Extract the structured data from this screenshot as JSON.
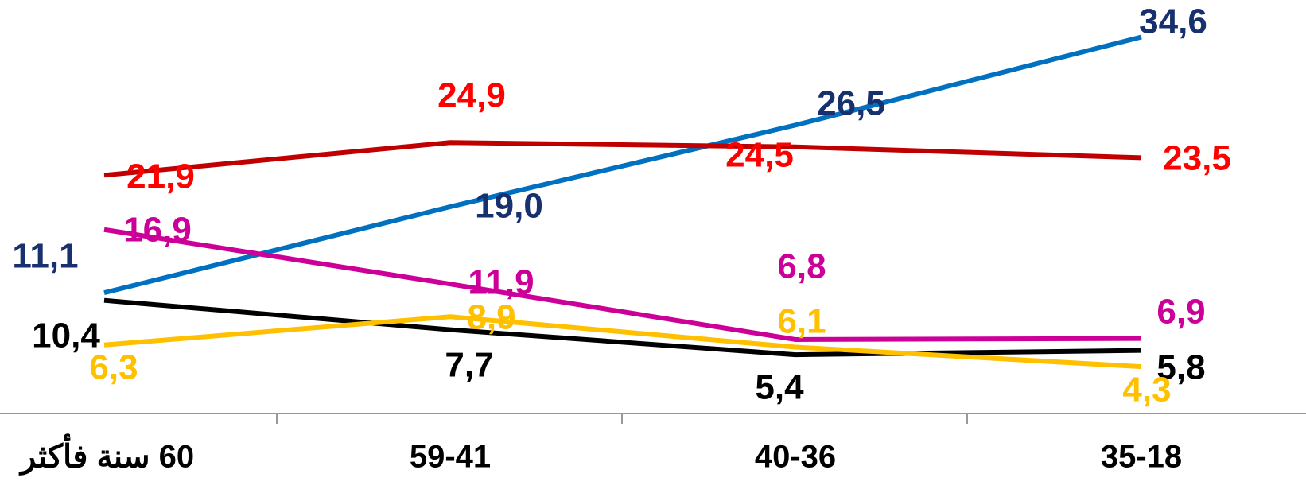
{
  "chart_data": {
    "type": "line",
    "categories": [
      "60 سنة فأكثر",
      "59-41",
      "40-36",
      "35-18"
    ],
    "ylim": [
      0,
      38
    ],
    "series": [
      {
        "color": "#0070c0",
        "label_color": "#17306e",
        "values": [
          11.1,
          19.0,
          26.5,
          34.6
        ],
        "value_labels": [
          "11,1",
          "19,0",
          "26,5",
          "34,6"
        ]
      },
      {
        "color": "#c00000",
        "label_color": "#ff0000",
        "values": [
          21.9,
          24.9,
          24.5,
          23.5
        ],
        "value_labels": [
          "21,9",
          "24,9",
          "24,5",
          "23,5"
        ]
      },
      {
        "color": "#cc0099",
        "label_color": "#cc0099",
        "values": [
          16.9,
          11.9,
          6.8,
          6.9
        ],
        "value_labels": [
          "16,9",
          "11,9",
          "6,8",
          "6,9"
        ]
      },
      {
        "color": "#000000",
        "label_color": "#000000",
        "values": [
          10.4,
          7.7,
          5.4,
          5.8
        ],
        "value_labels": [
          "10,4",
          "7,7",
          "5,4",
          "5,8"
        ]
      },
      {
        "color": "#ffc000",
        "label_color": "#ffc000",
        "values": [
          6.3,
          8.9,
          6.1,
          4.3
        ],
        "value_labels": [
          "6,3",
          "8,9",
          "6,1",
          "4,3"
        ]
      }
    ]
  }
}
